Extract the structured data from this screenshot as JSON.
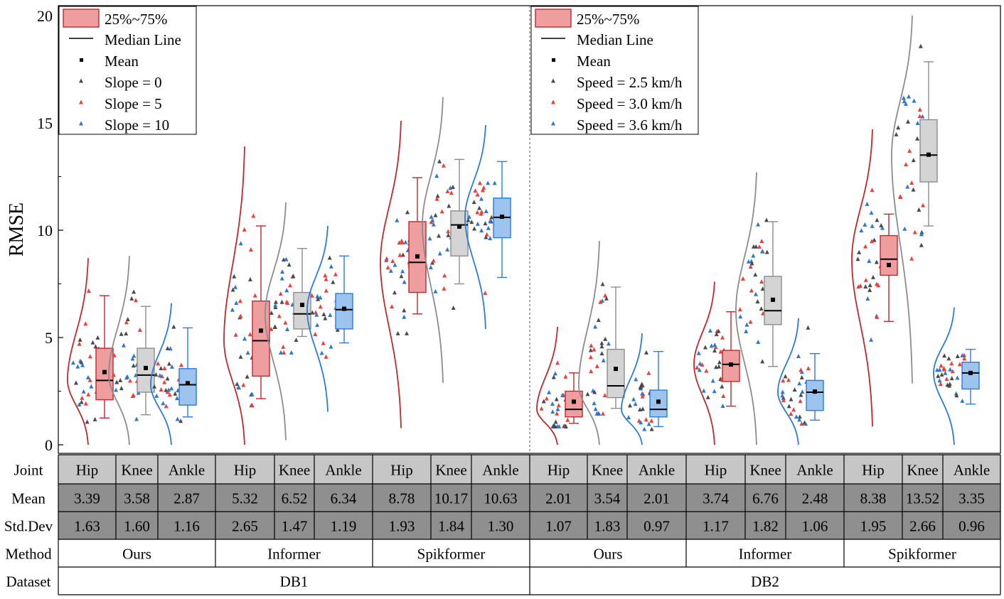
{
  "chart_data": {
    "type": "box",
    "ylabel": "RMSE",
    "ylim": [
      0,
      20
    ],
    "yticks": [
      0,
      5,
      10,
      15,
      20
    ],
    "panels": [
      {
        "dataset": "DB1",
        "legend": {
          "placement": "top-left",
          "box_label": "25%~75%",
          "median_label": "Median Line",
          "mean_label": "Mean",
          "condition_labels": [
            "Slope = 0",
            "Slope = 5",
            "Slope = 10"
          ]
        },
        "methods": [
          {
            "name": "Ours",
            "joints": [
              {
                "joint": "Hip",
                "q1": 2.1,
                "median": 3.0,
                "q3": 4.5,
                "whisker_low": 1.25,
                "whisker_high": 6.95,
                "mean": 3.39,
                "std": 1.63,
                "density_max": 8.7,
                "color": "#c0282d",
                "fill": "#ee9e9f"
              },
              {
                "joint": "Knee",
                "q1": 2.45,
                "median": 3.25,
                "q3": 4.5,
                "whisker_low": 1.4,
                "whisker_high": 6.45,
                "mean": 3.58,
                "std": 1.6,
                "density_max": 8.8,
                "color": "#8c8c8c",
                "fill": "#d4d4d4"
              },
              {
                "joint": "Ankle",
                "q1": 1.85,
                "median": 2.8,
                "q3": 3.55,
                "whisker_low": 1.3,
                "whisker_high": 5.45,
                "mean": 2.87,
                "std": 1.16,
                "density_max": 6.6,
                "color": "#2b7bd8",
                "fill": "#9cc4ee"
              }
            ]
          },
          {
            "name": "Informer",
            "joints": [
              {
                "joint": "Hip",
                "q1": 3.2,
                "median": 4.85,
                "q3": 6.7,
                "whisker_low": 2.15,
                "whisker_high": 10.2,
                "mean": 5.32,
                "std": 2.65,
                "density_max": 13.9,
                "color": "#c0282d",
                "fill": "#ee9e9f"
              },
              {
                "joint": "Knee",
                "q1": 5.4,
                "median": 6.1,
                "q3": 7.1,
                "whisker_low": 5.05,
                "whisker_high": 9.15,
                "mean": 6.52,
                "std": 1.47,
                "density_max": 11.3,
                "color": "#8c8c8c",
                "fill": "#d4d4d4"
              },
              {
                "joint": "Ankle",
                "q1": 5.4,
                "median": 6.3,
                "q3": 7.05,
                "whisker_low": 4.75,
                "whisker_high": 8.8,
                "mean": 6.34,
                "std": 1.19,
                "density_max": 10.2,
                "color": "#2b7bd8",
                "fill": "#9cc4ee"
              }
            ]
          },
          {
            "name": "Spikformer",
            "joints": [
              {
                "joint": "Hip",
                "q1": 7.1,
                "median": 8.5,
                "q3": 10.4,
                "whisker_low": 6.1,
                "whisker_high": 12.45,
                "mean": 8.78,
                "std": 1.93,
                "density_max": 15.1,
                "color": "#c0282d",
                "fill": "#ee9e9f"
              },
              {
                "joint": "Knee",
                "q1": 8.8,
                "median": 10.25,
                "q3": 10.9,
                "whisker_low": 7.5,
                "whisker_high": 13.3,
                "mean": 10.17,
                "std": 1.84,
                "density_max": 16.2,
                "color": "#8c8c8c",
                "fill": "#d4d4d4"
              },
              {
                "joint": "Ankle",
                "q1": 9.65,
                "median": 10.6,
                "q3": 11.5,
                "whisker_low": 7.8,
                "whisker_high": 13.2,
                "mean": 10.63,
                "std": 1.3,
                "density_max": 14.9,
                "color": "#2b7bd8",
                "fill": "#9cc4ee"
              }
            ]
          }
        ]
      },
      {
        "dataset": "DB2",
        "legend": {
          "placement": "top-left",
          "box_label": "25%~75%",
          "median_label": "Median Line",
          "mean_label": "Mean",
          "condition_labels": [
            "Speed = 2.5 km/h",
            "Speed = 3.0 km/h",
            "Speed = 3.6 km/h"
          ]
        },
        "methods": [
          {
            "name": "Ours",
            "joints": [
              {
                "joint": "Hip",
                "q1": 1.3,
                "median": 1.65,
                "q3": 2.5,
                "whisker_low": 1.0,
                "whisker_high": 3.35,
                "mean": 2.01,
                "std": 1.07,
                "density_max": 5.5,
                "color": "#c0282d",
                "fill": "#ee9e9f"
              },
              {
                "joint": "Knee",
                "q1": 2.2,
                "median": 2.75,
                "q3": 4.45,
                "whisker_low": 1.7,
                "whisker_high": 7.35,
                "mean": 3.54,
                "std": 1.83,
                "density_max": 9.5,
                "color": "#8c8c8c",
                "fill": "#d4d4d4"
              },
              {
                "joint": "Ankle",
                "q1": 1.3,
                "median": 1.65,
                "q3": 2.55,
                "whisker_low": 0.85,
                "whisker_high": 4.35,
                "mean": 2.01,
                "std": 0.97,
                "density_max": 5.2,
                "color": "#2b7bd8",
                "fill": "#9cc4ee"
              }
            ]
          },
          {
            "name": "Informer",
            "joints": [
              {
                "joint": "Hip",
                "q1": 2.95,
                "median": 3.75,
                "q3": 4.4,
                "whisker_low": 1.8,
                "whisker_high": 6.2,
                "mean": 3.74,
                "std": 1.17,
                "density_max": 7.6,
                "color": "#c0282d",
                "fill": "#ee9e9f"
              },
              {
                "joint": "Knee",
                "q1": 5.6,
                "median": 6.25,
                "q3": 7.85,
                "whisker_low": 3.65,
                "whisker_high": 10.4,
                "mean": 6.76,
                "std": 1.82,
                "density_max": 12.7,
                "color": "#8c8c8c",
                "fill": "#d4d4d4"
              },
              {
                "joint": "Ankle",
                "q1": 1.6,
                "median": 2.45,
                "q3": 3.0,
                "whisker_low": 1.15,
                "whisker_high": 4.25,
                "mean": 2.48,
                "std": 1.06,
                "density_max": 5.9,
                "color": "#2b7bd8",
                "fill": "#9cc4ee"
              }
            ]
          },
          {
            "name": "Spikformer",
            "joints": [
              {
                "joint": "Hip",
                "q1": 7.9,
                "median": 8.65,
                "q3": 9.75,
                "whisker_low": 5.75,
                "whisker_high": 10.75,
                "mean": 8.38,
                "std": 1.95,
                "density_max": 14.7,
                "color": "#c0282d",
                "fill": "#ee9e9f"
              },
              {
                "joint": "Knee",
                "q1": 12.25,
                "median": 13.5,
                "q3": 15.15,
                "whisker_low": 10.2,
                "whisker_high": 17.85,
                "mean": 13.52,
                "std": 2.66,
                "density_max": 20.0,
                "color": "#8c8c8c",
                "fill": "#d4d4d4"
              },
              {
                "joint": "Ankle",
                "q1": 2.6,
                "median": 3.35,
                "q3": 3.85,
                "whisker_low": 1.9,
                "whisker_high": 4.45,
                "mean": 3.35,
                "std": 0.96,
                "density_max": 6.4,
                "color": "#2b7bd8",
                "fill": "#9cc4ee"
              }
            ]
          }
        ]
      }
    ],
    "condition_colors": [
      "#4a4a4a",
      "#e8413c",
      "#2e77d0"
    ],
    "table": {
      "row_labels": [
        "Joint",
        "Mean",
        "Std.Dev",
        "Method",
        "Dataset"
      ]
    }
  }
}
